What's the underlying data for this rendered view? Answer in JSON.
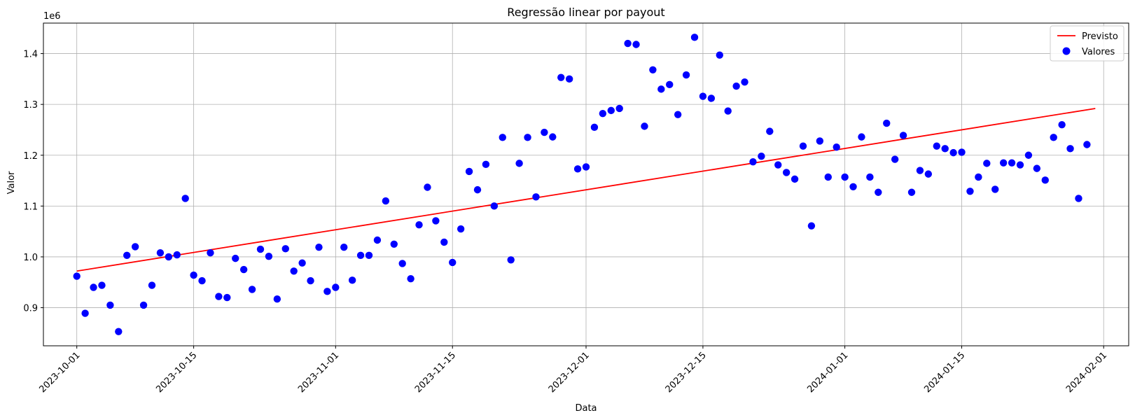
{
  "chart_data": {
    "type": "scatter",
    "title": "Regressão linear por payout",
    "xlabel": "Data",
    "ylabel": "Valor",
    "y_offset_label": "1e6",
    "grid": true,
    "legend_placement": "top-right",
    "xlim": [
      "2023-09-27",
      "2024-02-04"
    ],
    "ylim": [
      825000,
      1460000
    ],
    "x_ticks": [
      "2023-10-01",
      "2023-10-15",
      "2023-11-01",
      "2023-11-15",
      "2023-12-01",
      "2023-12-15",
      "2024-01-01",
      "2024-01-15",
      "2024-02-01"
    ],
    "y_ticks": [
      {
        "value": 900000,
        "label": "0.9"
      },
      {
        "value": 1000000,
        "label": "1.0"
      },
      {
        "value": 1100000,
        "label": "1.1"
      },
      {
        "value": 1200000,
        "label": "1.2"
      },
      {
        "value": 1300000,
        "label": "1.3"
      },
      {
        "value": 1400000,
        "label": "1.4"
      }
    ],
    "series": [
      {
        "name": "Previsto",
        "kind": "line",
        "color": "#ff0000",
        "points": [
          {
            "x": "2023-10-01",
            "y": 972000
          },
          {
            "x": "2024-01-31",
            "y": 1292000
          }
        ]
      },
      {
        "name": "Valores",
        "kind": "scatter",
        "color": "#0000ff",
        "start": "2023-10-01",
        "values": [
          962000,
          889000,
          940000,
          944000,
          905000,
          853000,
          1003000,
          1020000,
          905000,
          944000,
          1008000,
          1000000,
          1004000,
          1115000,
          964000,
          953000,
          1008000,
          922000,
          920000,
          997000,
          975000,
          936000,
          1015000,
          1001000,
          917000,
          1016000,
          972000,
          988000,
          953000,
          1019000,
          932000,
          940000,
          1019000,
          954000,
          1003000,
          1003000,
          1033000,
          1110000,
          1025000,
          987000,
          957000,
          1063000,
          1137000,
          1071000,
          1029000,
          989000,
          1055000,
          1168000,
          1132000,
          1182000,
          1100000,
          1235000,
          994000,
          1184000,
          1235000,
          1118000,
          1245000,
          1236000,
          1353000,
          1350000,
          1173000,
          1177000,
          1255000,
          1282000,
          1288000,
          1292000,
          1420000,
          1418000,
          1257000,
          1368000,
          1330000,
          1339000,
          1280000,
          1358000,
          1432000,
          1316000,
          1312000,
          1397000,
          1287000,
          1336000,
          1344000,
          1187000,
          1198000,
          1247000,
          1181000,
          1166000,
          1153000,
          1218000,
          1061000,
          1228000,
          1157000,
          1216000,
          1157000,
          1138000,
          1236000,
          1157000,
          1127000,
          1263000,
          1192000,
          1239000,
          1127000,
          1170000,
          1163000,
          1218000,
          1213000,
          1205000,
          1206000,
          1129000,
          1157000,
          1184000,
          1133000,
          1185000,
          1185000,
          1181000,
          1200000,
          1174000,
          1151000,
          1235000,
          1260000,
          1213000,
          1115000,
          1221000
        ]
      }
    ]
  }
}
